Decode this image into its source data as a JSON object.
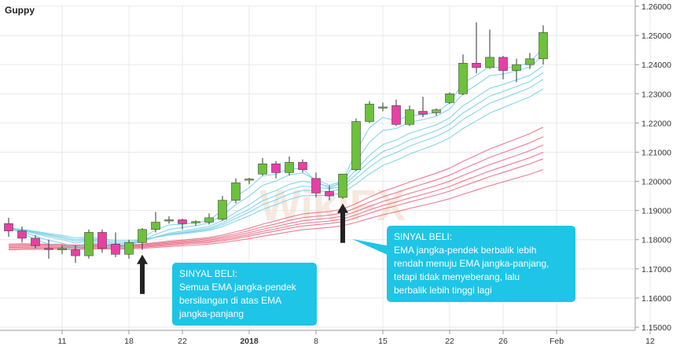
{
  "title": "Guppy",
  "watermark": "WikiFX",
  "colors": {
    "up": "#6cc23a",
    "down": "#ea3fa6",
    "short_ema": "#7dd3ea",
    "long_ema": "#ec6b86",
    "callout": "#1ec5e6",
    "arrow": "#222222",
    "grid": "#e8e8e8"
  },
  "callouts": [
    {
      "title": "SINYAL BELI:",
      "body": "Semua EMA jangka-pendek\nbersilangan di atas EMA\njangka-panjang"
    },
    {
      "title": "SINYAL BELI:",
      "body": "EMA jangka-pendek berbalik lebih\nrendah menuju EMA jangka-panjang,\ntetapi tidak menyeberang, lalu\nberbalik lebih tinggi lagi"
    }
  ],
  "chart_data": {
    "type": "candlestick",
    "title": "Guppy",
    "ylim": [
      1.15,
      1.26
    ],
    "y_ticks": [
      "1.26000",
      "1.25000",
      "1.24000",
      "1.23000",
      "1.22000",
      "1.21000",
      "1.20000",
      "1.19000",
      "1.18000",
      "1.17000",
      "1.16000",
      "1.15000"
    ],
    "x_ticks": [
      {
        "label": "11",
        "index": 4
      },
      {
        "label": "18",
        "index": 9
      },
      {
        "label": "22",
        "index": 13
      },
      {
        "label": "2018",
        "index": 18
      },
      {
        "label": "8",
        "index": 23
      },
      {
        "label": "15",
        "index": 28
      },
      {
        "label": "22",
        "index": 33
      },
      {
        "label": "26",
        "index": 37
      },
      {
        "label": "Feb",
        "index": 41
      },
      {
        "label": "12",
        "index": 48
      }
    ],
    "candles": [
      {
        "o": 1.1855,
        "h": 1.1875,
        "l": 1.181,
        "c": 1.183
      },
      {
        "o": 1.183,
        "h": 1.1845,
        "l": 1.179,
        "c": 1.1805
      },
      {
        "o": 1.1805,
        "h": 1.1815,
        "l": 1.177,
        "c": 1.178
      },
      {
        "o": 1.177,
        "h": 1.18,
        "l": 1.1735,
        "c": 1.1768
      },
      {
        "o": 1.1765,
        "h": 1.178,
        "l": 1.175,
        "c": 1.177
      },
      {
        "o": 1.1765,
        "h": 1.178,
        "l": 1.172,
        "c": 1.1745
      },
      {
        "o": 1.1745,
        "h": 1.1835,
        "l": 1.1735,
        "c": 1.1825
      },
      {
        "o": 1.1825,
        "h": 1.1835,
        "l": 1.1755,
        "c": 1.177
      },
      {
        "o": 1.1785,
        "h": 1.1825,
        "l": 1.174,
        "c": 1.175
      },
      {
        "o": 1.175,
        "h": 1.18,
        "l": 1.1735,
        "c": 1.179
      },
      {
        "o": 1.179,
        "h": 1.184,
        "l": 1.1765,
        "c": 1.1835
      },
      {
        "o": 1.1835,
        "h": 1.1895,
        "l": 1.1825,
        "c": 1.186
      },
      {
        "o": 1.1865,
        "h": 1.188,
        "l": 1.1855,
        "c": 1.1868
      },
      {
        "o": 1.1868,
        "h": 1.1872,
        "l": 1.1835,
        "c": 1.1855
      },
      {
        "o": 1.186,
        "h": 1.1866,
        "l": 1.1848,
        "c": 1.1862
      },
      {
        "o": 1.186,
        "h": 1.189,
        "l": 1.1852,
        "c": 1.1875
      },
      {
        "o": 1.187,
        "h": 1.195,
        "l": 1.1865,
        "c": 1.1935
      },
      {
        "o": 1.1935,
        "h": 1.201,
        "l": 1.1925,
        "c": 1.1995
      },
      {
        "o": 1.2005,
        "h": 1.2012,
        "l": 1.199,
        "c": 1.2008
      },
      {
        "o": 1.2025,
        "h": 1.208,
        "l": 1.202,
        "c": 1.206
      },
      {
        "o": 1.206,
        "h": 1.207,
        "l": 1.201,
        "c": 1.203
      },
      {
        "o": 1.203,
        "h": 1.2085,
        "l": 1.202,
        "c": 1.2065
      },
      {
        "o": 1.2065,
        "h": 1.2075,
        "l": 1.203,
        "c": 1.204
      },
      {
        "o": 1.201,
        "h": 1.203,
        "l": 1.1945,
        "c": 1.196
      },
      {
        "o": 1.1965,
        "h": 1.1985,
        "l": 1.1935,
        "c": 1.195
      },
      {
        "o": 1.1945,
        "h": 1.202,
        "l": 1.194,
        "c": 1.2025
      },
      {
        "o": 1.204,
        "h": 1.2215,
        "l": 1.2035,
        "c": 1.2205
      },
      {
        "o": 1.2205,
        "h": 1.2275,
        "l": 1.22,
        "c": 1.2265
      },
      {
        "o": 1.2255,
        "h": 1.227,
        "l": 1.224,
        "c": 1.2255
      },
      {
        "o": 1.226,
        "h": 1.228,
        "l": 1.219,
        "c": 1.2195
      },
      {
        "o": 1.2195,
        "h": 1.226,
        "l": 1.219,
        "c": 1.2245
      },
      {
        "o": 1.224,
        "h": 1.229,
        "l": 1.222,
        "c": 1.223
      },
      {
        "o": 1.2235,
        "h": 1.225,
        "l": 1.2225,
        "c": 1.2245
      },
      {
        "o": 1.227,
        "h": 1.2305,
        "l": 1.2265,
        "c": 1.23
      },
      {
        "o": 1.23,
        "h": 1.2435,
        "l": 1.2295,
        "c": 1.2405
      },
      {
        "o": 1.2405,
        "h": 1.2545,
        "l": 1.237,
        "c": 1.239
      },
      {
        "o": 1.239,
        "h": 1.252,
        "l": 1.2385,
        "c": 1.2425
      },
      {
        "o": 1.2425,
        "h": 1.243,
        "l": 1.235,
        "c": 1.238
      },
      {
        "o": 1.238,
        "h": 1.242,
        "l": 1.234,
        "c": 1.24
      },
      {
        "o": 1.24,
        "h": 1.244,
        "l": 1.2385,
        "c": 1.242
      },
      {
        "o": 1.242,
        "h": 1.2535,
        "l": 1.24,
        "c": 1.251
      }
    ],
    "arrows": [
      {
        "index": 10
      },
      {
        "index": 25
      }
    ]
  }
}
